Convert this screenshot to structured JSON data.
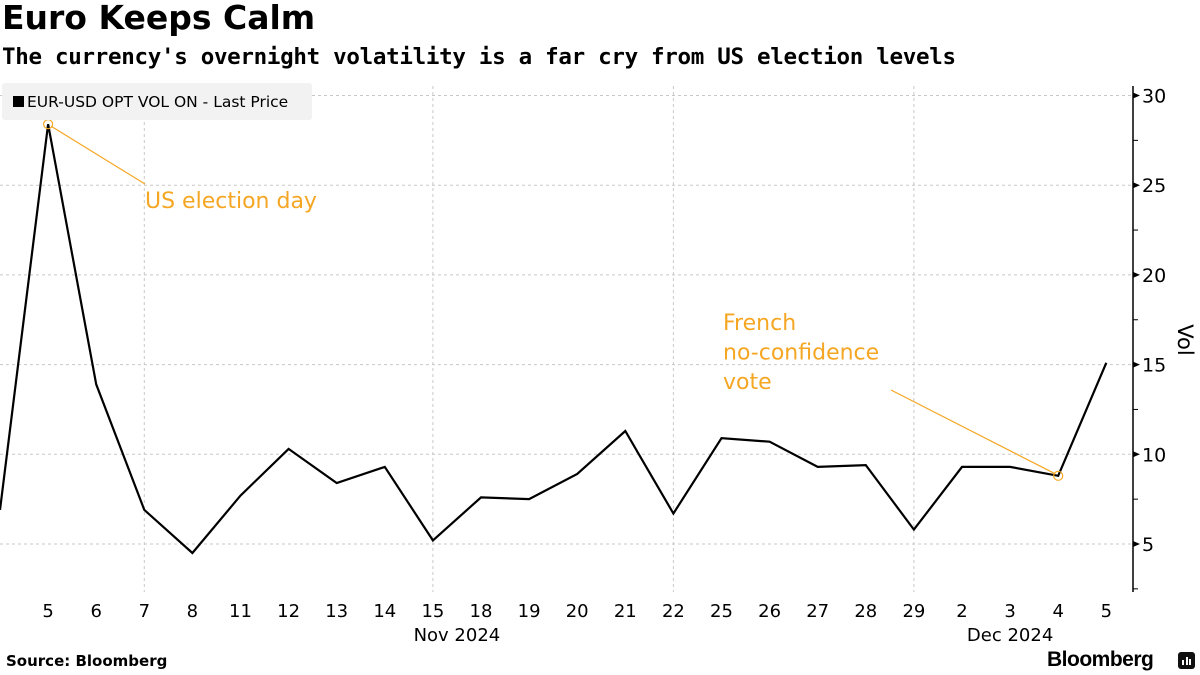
{
  "header": {
    "title": "Euro Keeps Calm",
    "subtitle": "The currency's overnight volatility is a far cry from US election levels"
  },
  "footer": {
    "source": "Source: Bloomberg",
    "brand": "Bloomberg"
  },
  "colors": {
    "line": "#000000",
    "annotation": "#f5a623",
    "grid": "#c8c8c8",
    "legend_bg": "#f2f2f2"
  },
  "chart_data": {
    "type": "line",
    "title": "Euro Keeps Calm",
    "subtitle": "The currency's overnight volatility is a far cry from US election levels",
    "xlabel": "",
    "ylabel": "Vol",
    "ylim": [
      2.5,
      31
    ],
    "yticks": [
      5,
      10,
      15,
      20,
      25,
      30
    ],
    "y_axis_side": "right",
    "grid": true,
    "legend": {
      "position": "top-left",
      "entries": [
        "EUR-USD OPT VOL ON - Last Price"
      ]
    },
    "x": [
      "4",
      "5",
      "6",
      "7",
      "8",
      "11",
      "12",
      "13",
      "14",
      "15",
      "18",
      "19",
      "20",
      "21",
      "22",
      "25",
      "26",
      "27",
      "28",
      "29",
      "2",
      "3",
      "4",
      "5"
    ],
    "x_tick_labels": [
      "5",
      "6",
      "7",
      "8",
      "11",
      "12",
      "13",
      "14",
      "15",
      "18",
      "19",
      "20",
      "21",
      "22",
      "25",
      "26",
      "27",
      "28",
      "29",
      "2",
      "3",
      "4",
      "5"
    ],
    "x_group_labels": [
      {
        "label": "Nov 2024",
        "under": "15"
      },
      {
        "label": "Dec 2024",
        "under": "3"
      }
    ],
    "x_grid_at": [
      "7",
      "15",
      "22",
      "29"
    ],
    "series": [
      {
        "name": "EUR-USD OPT VOL ON - Last Price",
        "values": [
          6.9,
          28.4,
          13.9,
          6.9,
          4.5,
          7.7,
          10.3,
          8.4,
          9.3,
          5.2,
          7.6,
          7.5,
          8.9,
          11.3,
          6.7,
          10.9,
          10.7,
          9.3,
          9.4,
          5.8,
          9.3,
          9.3,
          8.8,
          15.1
        ]
      }
    ],
    "annotations": [
      {
        "text_lines": [
          "US election day"
        ],
        "point_index": 1
      },
      {
        "text_lines": [
          "French",
          "no-confidence",
          "vote"
        ],
        "point_index": 22
      }
    ]
  }
}
